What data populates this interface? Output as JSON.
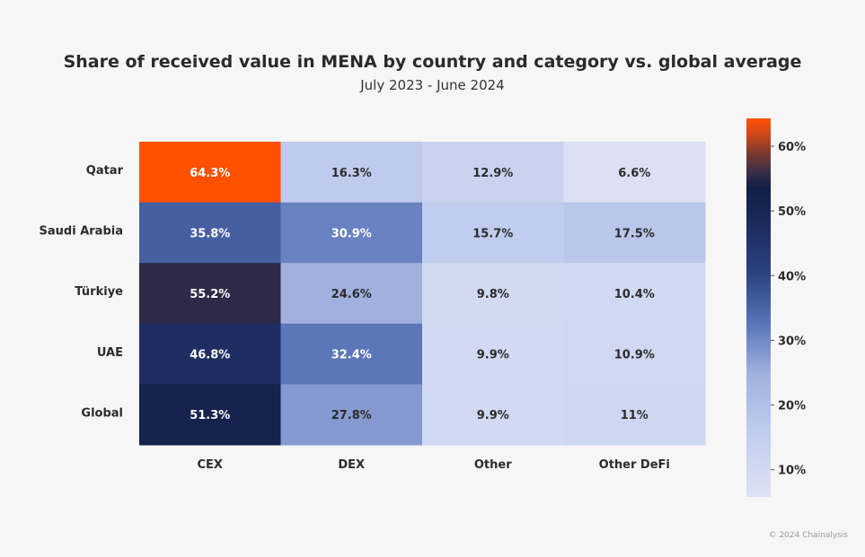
{
  "header": {
    "title": "Share of received value in MENA by country and category vs. global average",
    "subtitle": "July 2023 - June 2024"
  },
  "footer": {
    "copyright": "© 2024 Chainalysis"
  },
  "chart_data": {
    "type": "heatmap",
    "title": "Share of received value in MENA by country and category vs. global average",
    "subtitle": "July 2023 - June 2024",
    "rows": [
      "Qatar",
      "Saudi Arabia",
      "Türkiye",
      "UAE",
      "Global"
    ],
    "columns": [
      "CEX",
      "DEX",
      "Other",
      "Other DeFi"
    ],
    "values": [
      [
        64.3,
        16.3,
        12.9,
        6.6
      ],
      [
        35.8,
        30.9,
        15.7,
        17.5
      ],
      [
        55.2,
        24.6,
        9.8,
        10.4
      ],
      [
        46.8,
        32.4,
        9.9,
        10.9
      ],
      [
        51.3,
        27.8,
        9.9,
        11
      ]
    ],
    "cell_labels": [
      [
        "64.3%",
        "16.3%",
        "12.9%",
        "6.6%"
      ],
      [
        "35.8%",
        "30.9%",
        "15.7%",
        "17.5%"
      ],
      [
        "55.2%",
        "24.6%",
        "9.8%",
        "10.4%"
      ],
      [
        "46.8%",
        "32.4%",
        "9.9%",
        "10.9%"
      ],
      [
        "51.3%",
        "27.8%",
        "9.9%",
        "11%"
      ]
    ],
    "colorbar": {
      "range": [
        5.8,
        64.3
      ],
      "ticks": [
        10,
        20,
        30,
        40,
        50,
        60
      ],
      "tick_labels": [
        "10%",
        "20%",
        "30%",
        "40%",
        "50%",
        "60%"
      ],
      "colors": [
        {
          "v": 5.8,
          "c": "#dde2f4"
        },
        {
          "v": 15,
          "c": "#c3cfef"
        },
        {
          "v": 25,
          "c": "#9fb0de"
        },
        {
          "v": 33,
          "c": "#5671b6"
        },
        {
          "v": 40,
          "c": "#2d4482"
        },
        {
          "v": 48,
          "c": "#1c2a5c"
        },
        {
          "v": 53.5,
          "c": "#111e45"
        },
        {
          "v": 56,
          "c": "#3a2e48"
        },
        {
          "v": 59,
          "c": "#7c3b2c"
        },
        {
          "v": 62,
          "c": "#d5481b"
        },
        {
          "v": 64.3,
          "c": "#ff5000"
        }
      ]
    }
  }
}
